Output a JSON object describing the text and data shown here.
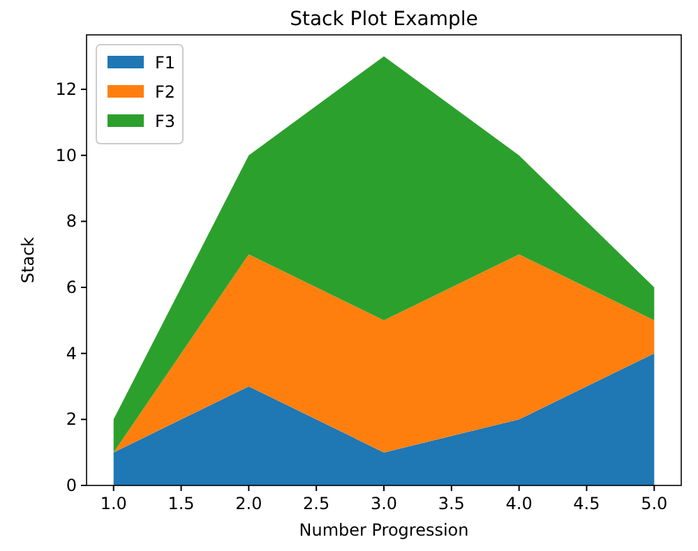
{
  "chart_data": {
    "type": "area",
    "stacked": true,
    "title": "Stack Plot Example",
    "xlabel": "Number Progression",
    "ylabel": "Stack",
    "x": [
      1,
      2,
      3,
      4,
      5
    ],
    "series": [
      {
        "name": "F1",
        "color": "#1f77b4",
        "values": [
          1,
          3,
          1,
          2,
          4
        ]
      },
      {
        "name": "F2",
        "color": "#ff7f0e",
        "values": [
          0,
          4,
          4,
          5,
          1
        ]
      },
      {
        "name": "F3",
        "color": "#2ca02c",
        "values": [
          1,
          3,
          8,
          3,
          1
        ]
      }
    ],
    "xlim": [
      0.8,
      5.2
    ],
    "xticks": [
      {
        "value": 1,
        "label": "1.0"
      },
      {
        "value": 1.5,
        "label": "1.5"
      },
      {
        "value": 2,
        "label": "2.0"
      },
      {
        "value": 2.5,
        "label": "2.5"
      },
      {
        "value": 3,
        "label": "3.0"
      },
      {
        "value": 3.5,
        "label": "3.5"
      },
      {
        "value": 4,
        "label": "4.0"
      },
      {
        "value": 4.5,
        "label": "4.5"
      },
      {
        "value": 5,
        "label": "5.0"
      }
    ],
    "ylim": [
      0,
      13.65
    ],
    "yticks": [
      0,
      2,
      4,
      6,
      8,
      10,
      12
    ],
    "legend": "top left",
    "grid": false
  }
}
